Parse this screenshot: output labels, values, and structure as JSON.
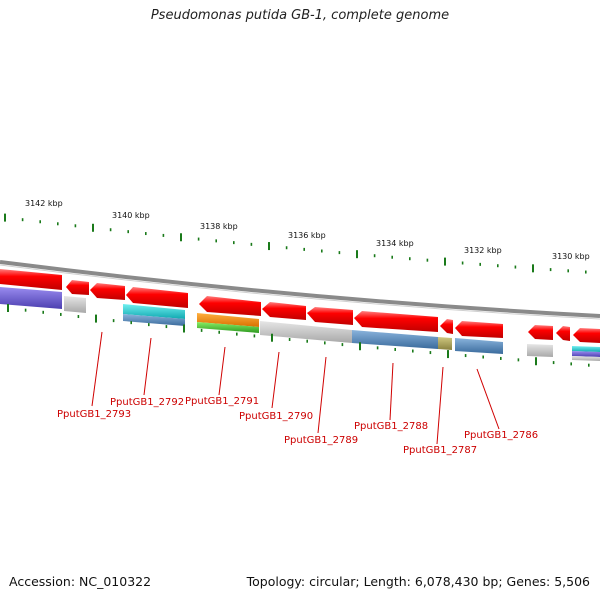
{
  "title": "Pseudomonas putida GB-1, complete genome",
  "footer": {
    "accession": "Accession: NC_010322",
    "summary": "Topology: circular; Length: 6,078,430 bp; Genes: 5,506"
  },
  "ruler_labels": [
    "3142 kbp",
    "3140 kbp",
    "3138 kbp",
    "3136 kbp",
    "3134 kbp",
    "3132 kbp",
    "3130 kbp"
  ],
  "gene_labels": [
    "PputGB1_2793",
    "PputGB1_2792",
    "PputGB1_2791",
    "PputGB1_2790",
    "PputGB1_2789",
    "PputGB1_2788",
    "PputGB1_2787",
    "PputGB1_2786"
  ],
  "colors": {
    "gene_arrow": "#ee0000",
    "label": "#cc0000",
    "tick": "#1a7a1a",
    "backbone": "#888888",
    "cog_purple": "#6a5acd",
    "cog_gray": "#b8b8b8",
    "cog_cyan": "#20c0c8",
    "cog_steel": "#4a7fb0",
    "cog_orange": "#f08c00",
    "cog_green": "#44bb33",
    "cog_olive": "#a8a050"
  }
}
